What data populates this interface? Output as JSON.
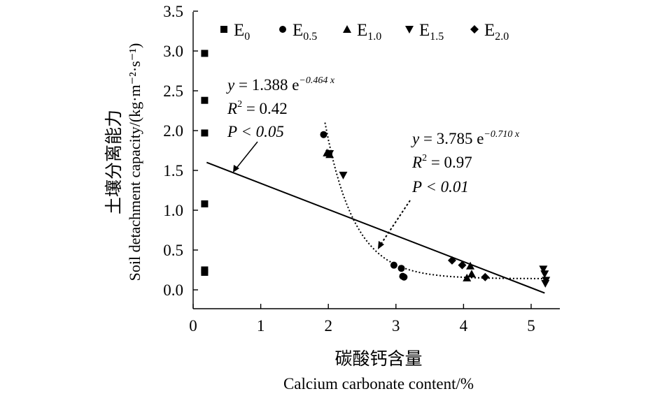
{
  "chart_data": {
    "type": "scatter",
    "x_zh": "碳酸钙含量",
    "xlabel": "Calcium carbonate content/%",
    "y_zh": "土壤分离能力",
    "ylabel": "Soil detachment capacity/(kg·m⁻²·s⁻¹)",
    "xlim": [
      0,
      5.5
    ],
    "ylim": [
      -0.25,
      3.5
    ],
    "xticks": [
      "0",
      "1",
      "2",
      "3",
      "4",
      "5"
    ],
    "yticks": [
      "0.0",
      "0.5",
      "1.0",
      "1.5",
      "2.0",
      "2.5",
      "3.0",
      "3.5"
    ],
    "legend_position": "top",
    "series": [
      {
        "name": "E",
        "sub": "0",
        "marker": "square",
        "x": [
          0.17,
          0.17,
          0.17,
          0.17,
          0.17,
          0.17
        ],
        "y": [
          2.97,
          2.38,
          1.97,
          1.08,
          0.25,
          0.22
        ]
      },
      {
        "name": "E",
        "sub": "0.5",
        "marker": "circle",
        "x": [
          1.93,
          2.97,
          3.08,
          3.1,
          3.12
        ],
        "y": [
          1.95,
          0.31,
          0.27,
          0.17,
          0.16
        ]
      },
      {
        "name": "E",
        "sub": "1.0",
        "marker": "triangle-up",
        "x": [
          1.98,
          2.02,
          4.05,
          4.1,
          4.12
        ],
        "y": [
          1.72,
          1.7,
          0.15,
          0.3,
          0.2
        ]
      },
      {
        "name": "E",
        "sub": "1.5",
        "marker": "triangle-down",
        "x": [
          2.02,
          2.22,
          5.18,
          5.2,
          5.22,
          5.21
        ],
        "y": [
          1.71,
          1.44,
          0.26,
          0.2,
          0.12,
          0.08
        ]
      },
      {
        "name": "E",
        "sub": "2.0",
        "marker": "diamond",
        "x": [
          2.0,
          3.83,
          3.98,
          4.32
        ],
        "y": [
          1.71,
          0.37,
          0.31,
          0.16
        ]
      }
    ],
    "fits": [
      {
        "eq_pre": "y",
        "eq_mid": " = 1.388 e",
        "eq_exp": "−0.464 x",
        "r2": " = 0.42",
        "p": "P < 0.05"
      },
      {
        "eq_pre": "y",
        "eq_mid": " = 3.785 e",
        "eq_exp": "−0.710 x",
        "r2": " = 0.97",
        "p": "P < 0.01"
      }
    ]
  }
}
